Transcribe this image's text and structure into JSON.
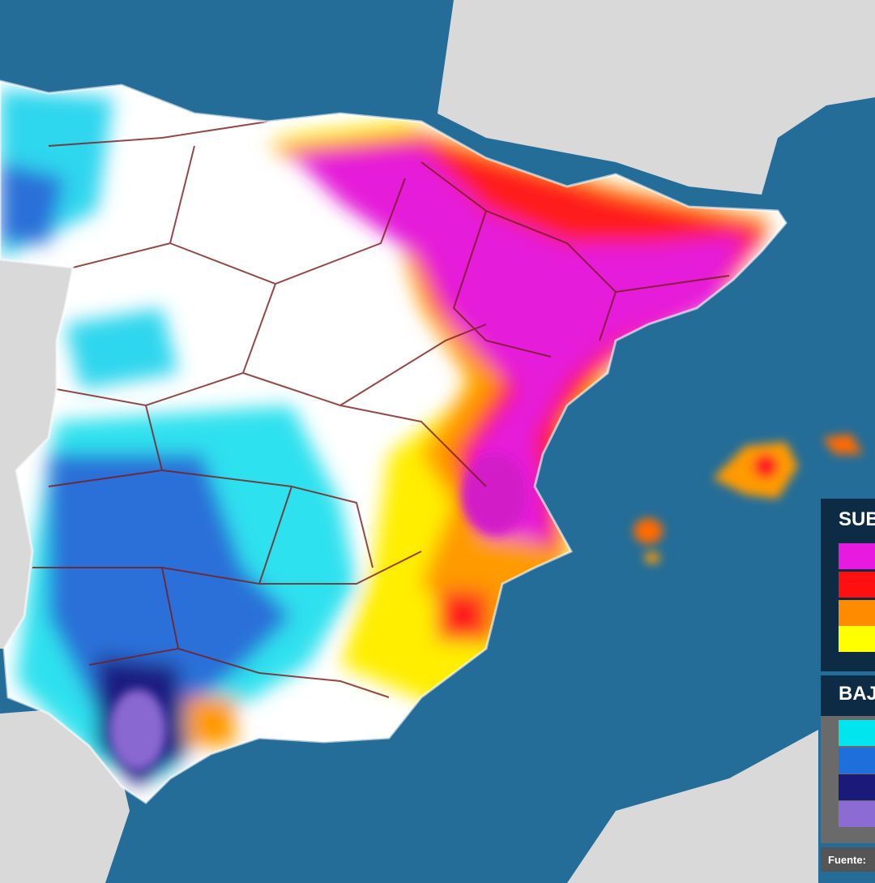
{
  "legend": {
    "rise_title": "SUB",
    "fall_title": "BAJ"
  },
  "source": "Fuente:"
}
